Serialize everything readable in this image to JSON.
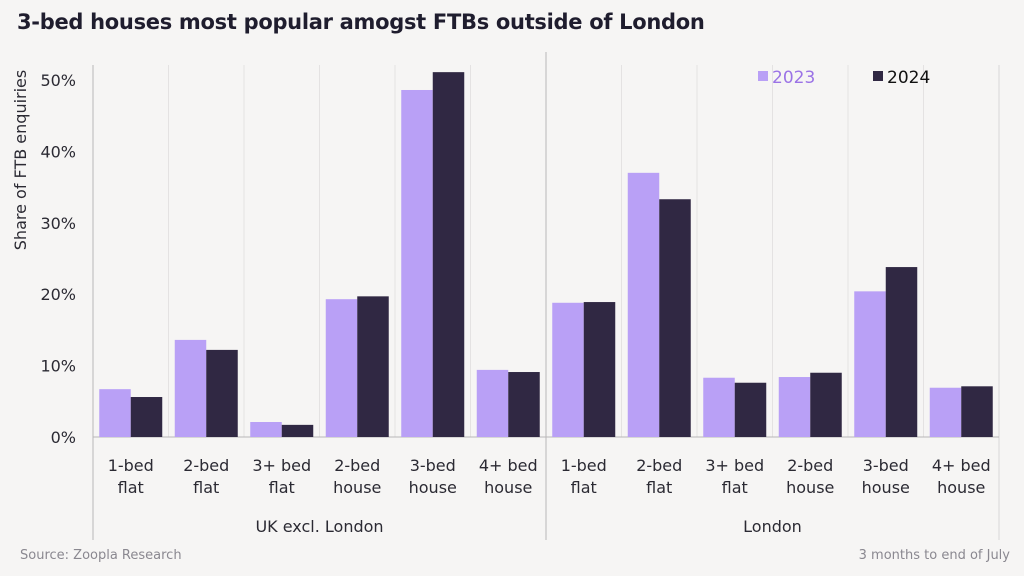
{
  "chart_data": {
    "type": "bar",
    "title": "3-bed houses most popular amogst FTBs outside of London",
    "ylabel": "Share of FTB enquiries",
    "xlabel": "",
    "ylim": [
      0,
      52
    ],
    "yticks": [
      0,
      10,
      20,
      30,
      40,
      50
    ],
    "ytick_labels": [
      "0%",
      "10%",
      "20%",
      "30%",
      "40%",
      "50%"
    ],
    "grid": "vertical",
    "legend_position": "top-right",
    "groups": [
      "UK excl. London",
      "London"
    ],
    "categories": [
      {
        "line1": "1-bed",
        "line2": "flat"
      },
      {
        "line1": "2-bed",
        "line2": "flat"
      },
      {
        "line1": "3+ bed",
        "line2": "flat"
      },
      {
        "line1": "2-bed",
        "line2": "house"
      },
      {
        "line1": "3-bed",
        "line2": "house"
      },
      {
        "line1": "4+ bed",
        "line2": "house"
      }
    ],
    "series": [
      {
        "name": "2023",
        "color": "#b9a0f6",
        "values": [
          [
            6.7,
            13.6,
            2.1,
            19.3,
            48.6,
            9.4
          ],
          [
            18.8,
            37.0,
            8.3,
            8.4,
            20.4,
            6.9
          ]
        ]
      },
      {
        "name": "2024",
        "color": "#302843",
        "values": [
          [
            5.6,
            12.2,
            1.7,
            19.7,
            51.1,
            9.1
          ],
          [
            18.9,
            33.3,
            7.6,
            9.0,
            23.8,
            7.1
          ]
        ]
      }
    ],
    "legend_text_colors": [
      "#9b73e6",
      "#111111"
    ]
  },
  "footer": {
    "source": "Source: Zoopla Research",
    "note": "3 months to end of July"
  }
}
